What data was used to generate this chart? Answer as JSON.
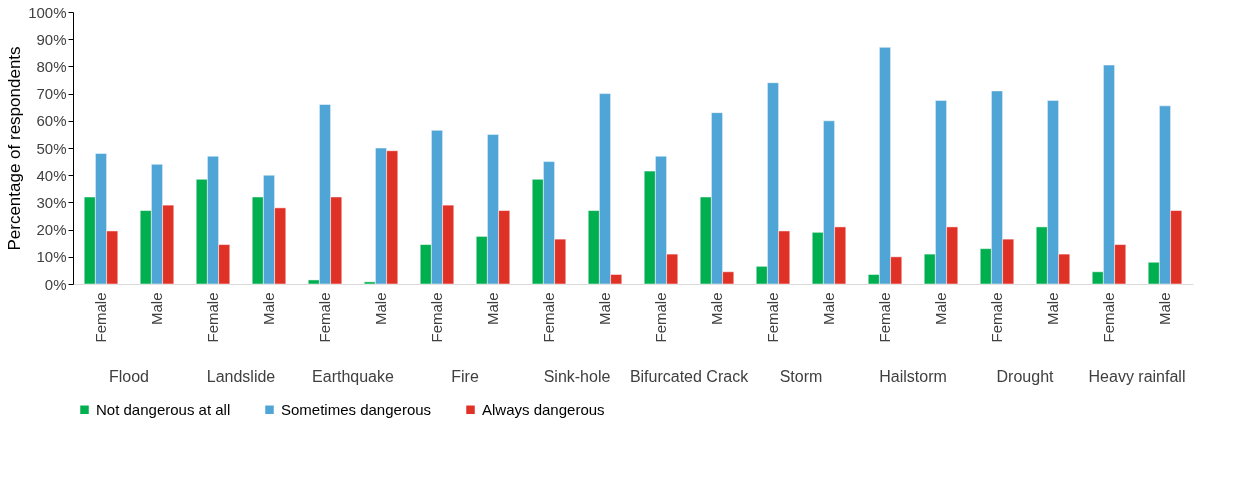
{
  "chart_data": {
    "type": "bar",
    "ylabel": "Percentage of respondents",
    "categories": [
      "Female",
      "Male",
      "Female",
      "Male",
      "Female",
      "Male",
      "Female",
      "Male",
      "Female",
      "Male",
      "Female",
      "Male",
      "Female",
      "Male",
      "Female",
      "Male",
      "Female",
      "Male",
      "Female",
      "Male"
    ],
    "series": [
      {
        "name": "Not dangerous at all",
        "color": "#00b050",
        "values": [
          32,
          27,
          38.5,
          32,
          1.5,
          0.8,
          14.5,
          17.5,
          38.5,
          27,
          41.5,
          32,
          6.5,
          19,
          3.5,
          11,
          13,
          21,
          4.5,
          8
        ]
      },
      {
        "name": "Sometimes dangerous",
        "color": "#4fa5d5",
        "values": [
          48,
          44,
          47,
          40,
          66,
          50,
          56.5,
          55,
          45,
          70,
          47,
          63,
          74,
          60,
          87,
          67.5,
          71,
          67.5,
          80.5,
          65.5
        ]
      },
      {
        "name": "Always dangerous",
        "color": "#e03127",
        "values": [
          19.5,
          29,
          14.5,
          28,
          32,
          49,
          29,
          27,
          16.5,
          3.5,
          11,
          4.5,
          19.5,
          21,
          10,
          21,
          16.5,
          11,
          14.5,
          27
        ]
      }
    ],
    "annotations": [
      "Flood",
      "Landslide",
      "Earthquake",
      "Fire",
      "Sink-hole",
      "Bifurcated Crack",
      "Storm",
      "Hailstorm",
      "Drought",
      "Heavy rainfall"
    ],
    "ylim": [
      0,
      100
    ],
    "yticks": [
      {
        "value": 0,
        "label": "0%"
      },
      {
        "value": 10,
        "label": "10%"
      },
      {
        "value": 20,
        "label": "20%"
      },
      {
        "value": 30,
        "label": "30%"
      },
      {
        "value": 40,
        "label": "40%"
      },
      {
        "value": 50,
        "label": "50%"
      },
      {
        "value": 60,
        "label": "60%"
      },
      {
        "value": 70,
        "label": "70%"
      },
      {
        "value": 80,
        "label": "80%"
      },
      {
        "value": 90,
        "label": "90%"
      },
      {
        "value": 100,
        "label": "100%"
      }
    ],
    "grid": false,
    "legend": "bottom"
  }
}
